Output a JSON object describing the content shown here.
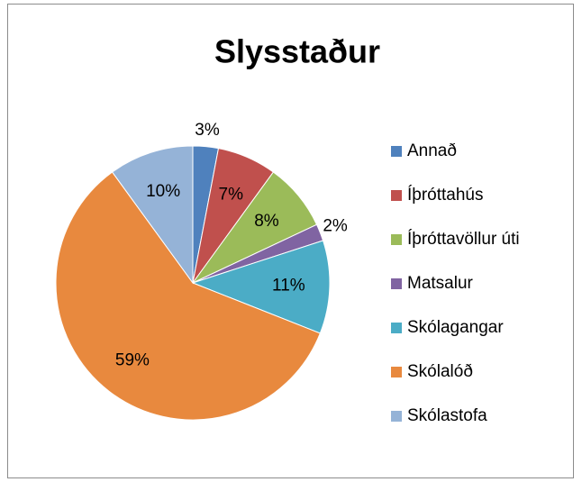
{
  "chart_data": {
    "type": "pie",
    "title": "Slysstaður",
    "categories": [
      "Annað",
      "Íþróttahús",
      "Íþróttavöllur úti",
      "Matsalur",
      "Skólagangar",
      "Skólalóð",
      "Skólastofa"
    ],
    "values": [
      3,
      7,
      8,
      2,
      11,
      59,
      10
    ],
    "value_labels": [
      "3%",
      "7%",
      "8%",
      "2%",
      "11%",
      "59%",
      "10%"
    ],
    "colors": [
      "#4f81bd",
      "#c0504d",
      "#9bbb59",
      "#8064a2",
      "#4bacc6",
      "#e8893e",
      "#95b3d7"
    ],
    "legend": "right"
  }
}
